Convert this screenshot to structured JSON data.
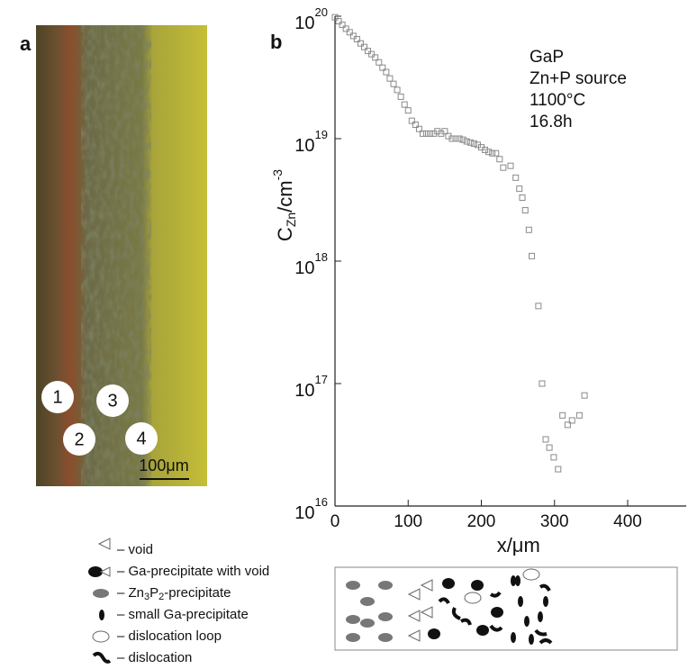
{
  "panel_a": {
    "label": "a",
    "markers": [
      "1",
      "2",
      "3",
      "4"
    ],
    "scale_bar": "100μm"
  },
  "chart_data": {
    "type": "scatter",
    "panel_label": "b",
    "annotation": [
      "GaP",
      "Zn+P source",
      "1100°C",
      "16.8h"
    ],
    "x_label": "x/μm",
    "y_label": {
      "base": "C",
      "subscript": "Zn",
      "unit": "/cm",
      "exponent": "-3"
    },
    "x": [
      0,
      5,
      10,
      15,
      20,
      25,
      30,
      35,
      40,
      45,
      50,
      55,
      60,
      65,
      70,
      75,
      80,
      85,
      90,
      95,
      100,
      105,
      110,
      115,
      120,
      125,
      130,
      135,
      140,
      145,
      150,
      155,
      160,
      165,
      170,
      175,
      180,
      185,
      190,
      195,
      200,
      205,
      210,
      215,
      220,
      225,
      230,
      240,
      247,
      252,
      256,
      260,
      265,
      269,
      278,
      283,
      288,
      293,
      299,
      305,
      311,
      318,
      324,
      334,
      341
    ],
    "series": [
      {
        "color": "#8a8a8a",
        "values": [
          9.8e+19,
          9.1e+19,
          8.5e+19,
          7.9e+19,
          7.4e+19,
          6.9e+19,
          6.5e+19,
          6e+19,
          5.6e+19,
          5.2e+19,
          4.9e+19,
          4.6e+19,
          4.2e+19,
          3.8e+19,
          3.5e+19,
          3.1e+19,
          2.8e+19,
          2.5e+19,
          2.2e+19,
          1.9e+19,
          1.7e+19,
          1.4e+19,
          1.3e+19,
          1.2e+19,
          1.1e+19,
          1.1e+19,
          1.1e+19,
          1.1e+19,
          1.15e+19,
          1.1e+19,
          1.15e+19,
          1.05e+19,
          1e+19,
          1e+19,
          1e+19,
          9.8e+18,
          9.5e+18,
          9.3e+18,
          9.1e+18,
          8.9e+18,
          8.5e+18,
          8.1e+18,
          7.8e+18,
          7.6e+18,
          7.6e+18,
          6.8e+18,
          5.8e+18,
          6e+18,
          4.8e+18,
          3.9e+18,
          3.3e+18,
          2.6e+18,
          1.8e+18,
          1.1e+18,
          4.3e+17,
          1e+17,
          3.5e+16,
          3e+16,
          2.5e+16,
          2e+16,
          5.5e+16,
          4.6e+16,
          5e+16,
          5.5e+16,
          8e+16
        ]
      }
    ],
    "xlim": [
      0,
      480
    ],
    "xticks": [
      0,
      100,
      200,
      300,
      400
    ],
    "ylim": [
      1e+16,
      1e+20
    ],
    "yticks": [
      {
        "value": 1e+16,
        "label": "10",
        "exponent": "16"
      },
      {
        "value": 1e+17,
        "label": "10",
        "exponent": "17"
      },
      {
        "value": 1e+18,
        "label": "10",
        "exponent": "18"
      },
      {
        "value": 1e+19,
        "label": "10",
        "exponent": "19"
      },
      {
        "value": 1e+20,
        "label": "10",
        "exponent": "20"
      }
    ],
    "log_y": true,
    "marker": "square"
  },
  "legend": {
    "items": [
      {
        "parts": [
          "– void"
        ]
      },
      {
        "parts": [
          "– Ga-precipitate with void"
        ]
      },
      {
        "parts": [
          "– Zn",
          "3",
          "P",
          "2",
          "-precipitate"
        ]
      },
      {
        "parts": [
          "– small Ga-precipitate"
        ]
      },
      {
        "parts": [
          "– dislocation loop"
        ]
      },
      {
        "parts": [
          "– dislocation"
        ]
      }
    ]
  }
}
